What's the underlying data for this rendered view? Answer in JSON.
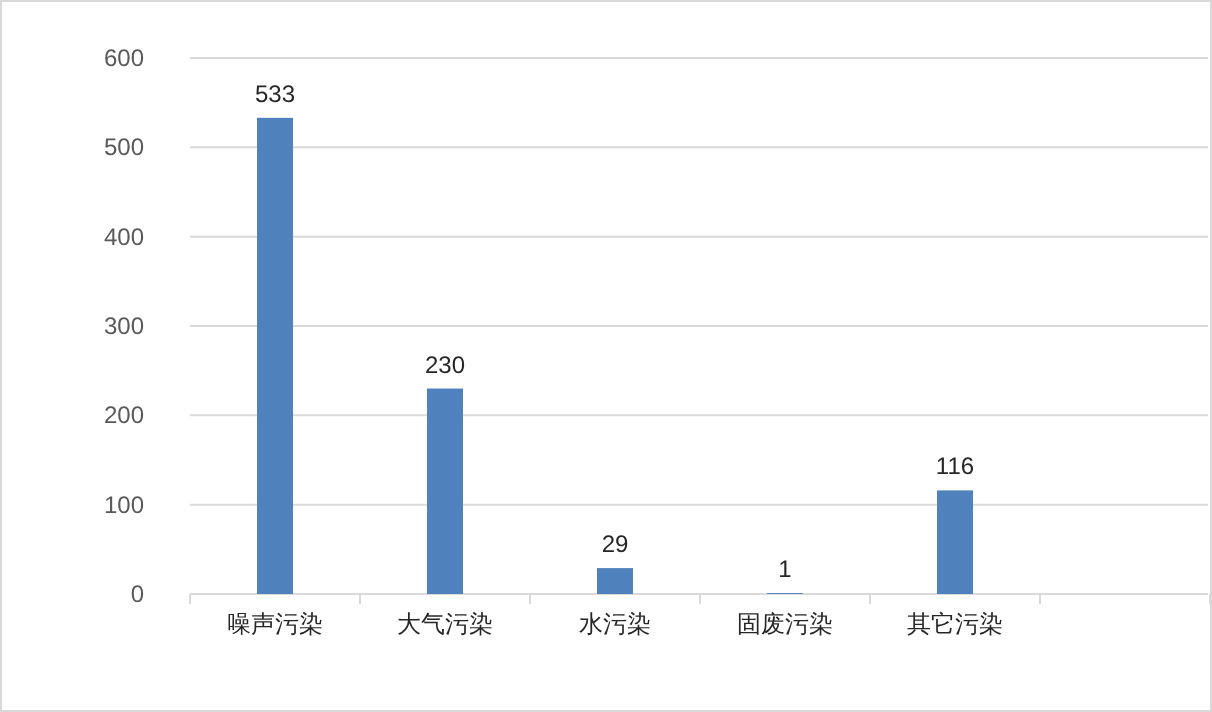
{
  "chart_data": {
    "type": "bar",
    "categories": [
      "噪声污染",
      "大气污染",
      "水污染",
      "固废污染",
      "其它污染",
      null
    ],
    "values": [
      533,
      230,
      29,
      1,
      116,
      null
    ],
    "color": "#4f81bd",
    "ylim": [
      0,
      600
    ],
    "yticks": [
      0,
      100,
      200,
      300,
      400,
      500,
      600
    ],
    "grid": "y",
    "data_labels": true
  }
}
